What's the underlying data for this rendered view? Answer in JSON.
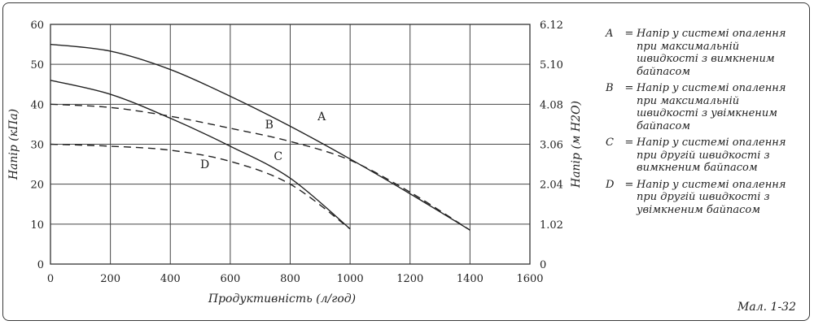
{
  "chart_data": {
    "type": "line",
    "xlabel": "Продуктивність (л/год)",
    "ylabel": "Напір (кПа)",
    "y2label": "Напір (м H2O)",
    "xlim": [
      0,
      1600
    ],
    "ylim": [
      0,
      60
    ],
    "x_ticks": [
      0,
      200,
      400,
      600,
      800,
      1000,
      1200,
      1400,
      1600
    ],
    "y_ticks": [
      0,
      10,
      20,
      30,
      40,
      50,
      60
    ],
    "y2_ticks": [
      "0",
      "1.02",
      "2.04",
      "3.06",
      "4.08",
      "5.10",
      "6.12"
    ],
    "grid": true,
    "series": [
      {
        "name": "A",
        "style": "solid",
        "label_at": [
          905,
          36
        ],
        "x": [
          0,
          200,
          400,
          600,
          800,
          1000,
          1200,
          1400
        ],
        "y": [
          55,
          53.3,
          48.7,
          42,
          34.5,
          26.3,
          17.6,
          8.5
        ]
      },
      {
        "name": "B",
        "style": "dashed",
        "label_at": [
          730,
          34
        ],
        "x": [
          0,
          200,
          400,
          600,
          800,
          1000,
          1200,
          1400
        ],
        "y": [
          40,
          39.2,
          37,
          34,
          30.7,
          26,
          18,
          8.5
        ]
      },
      {
        "name": "C",
        "style": "solid",
        "label_at": [
          760,
          26
        ],
        "x": [
          0,
          200,
          400,
          600,
          800,
          1000
        ],
        "y": [
          46,
          42.5,
          36.5,
          29.5,
          21.5,
          8.8
        ]
      },
      {
        "name": "D",
        "style": "dashed",
        "label_at": [
          515,
          24
        ],
        "x": [
          0,
          200,
          400,
          600,
          800,
          1000
        ],
        "y": [
          30,
          29.5,
          28.5,
          25.7,
          20,
          8.8
        ]
      }
    ]
  },
  "legend": [
    {
      "key": "A",
      "eq": "=",
      "text": "Напір у системі опалення при максимальній швидкості з вимкненим байпасом"
    },
    {
      "key": "B",
      "eq": "=",
      "text": "Напір у системі опалення при максимальній швидкості з увімкненим байпасом"
    },
    {
      "key": "C",
      "eq": "=",
      "text": "Напір у системі опалення при другій швидкості з вимкненим байпасом"
    },
    {
      "key": "D",
      "eq": "=",
      "text": "Напір у системі опалення при другій швидкості з увімкненим байпасом"
    }
  ],
  "figure_label": "Мал. 1-32"
}
